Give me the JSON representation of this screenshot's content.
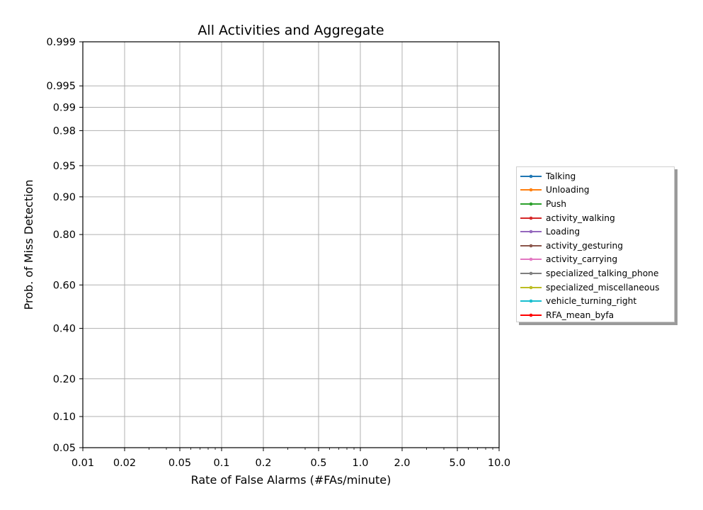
{
  "chart_data": {
    "type": "line",
    "title": "All Activities and Aggregate",
    "xlabel": "Rate of False Alarms (#FAs/minute)",
    "ylabel": "Prob. of Miss Detection",
    "xscale": "log",
    "yscale": "normal-deviate (probit)",
    "xlim": [
      0.01,
      10.0
    ],
    "ylim": [
      0.05,
      0.999
    ],
    "xticks": [
      0.01,
      0.02,
      0.05,
      0.1,
      0.2,
      0.5,
      1.0,
      2.0,
      5.0,
      10.0
    ],
    "xtick_labels": [
      "0.01",
      "0.02",
      "0.05",
      "0.1",
      "0.2",
      "0.5",
      "1.0",
      "2.0",
      "5.0",
      "10.0"
    ],
    "yticks": [
      0.05,
      0.1,
      0.2,
      0.4,
      0.6,
      0.8,
      0.9,
      0.95,
      0.98,
      0.99,
      0.995,
      0.999
    ],
    "ytick_labels": [
      "0.05",
      "0.10",
      "0.20",
      "0.40",
      "0.60",
      "0.80",
      "0.90",
      "0.95",
      "0.98",
      "0.99",
      "0.995",
      "0.999"
    ],
    "grid": true,
    "legend_position": "right, outside plot",
    "series": [
      {
        "name": "Talking",
        "color": "#1f77b4",
        "x": [],
        "y": []
      },
      {
        "name": "Unloading",
        "color": "#ff7f0e",
        "x": [],
        "y": []
      },
      {
        "name": "Push",
        "color": "#2ca02c",
        "x": [],
        "y": []
      },
      {
        "name": "activity_walking",
        "color": "#d62728",
        "x": [],
        "y": []
      },
      {
        "name": "Loading",
        "color": "#9467bd",
        "x": [],
        "y": []
      },
      {
        "name": "activity_gesturing",
        "color": "#8c564b",
        "x": [],
        "y": []
      },
      {
        "name": "activity_carrying",
        "color": "#e377c2",
        "x": [],
        "y": []
      },
      {
        "name": "specialized_talking_phone",
        "color": "#7f7f7f",
        "x": [],
        "y": []
      },
      {
        "name": "specialized_miscellaneous",
        "color": "#bcbd22",
        "x": [],
        "y": []
      },
      {
        "name": "vehicle_turning_right",
        "color": "#17becf",
        "x": [],
        "y": []
      },
      {
        "name": "RFA_mean_byfa",
        "color": "#ff0000",
        "x": [],
        "y": []
      }
    ]
  }
}
